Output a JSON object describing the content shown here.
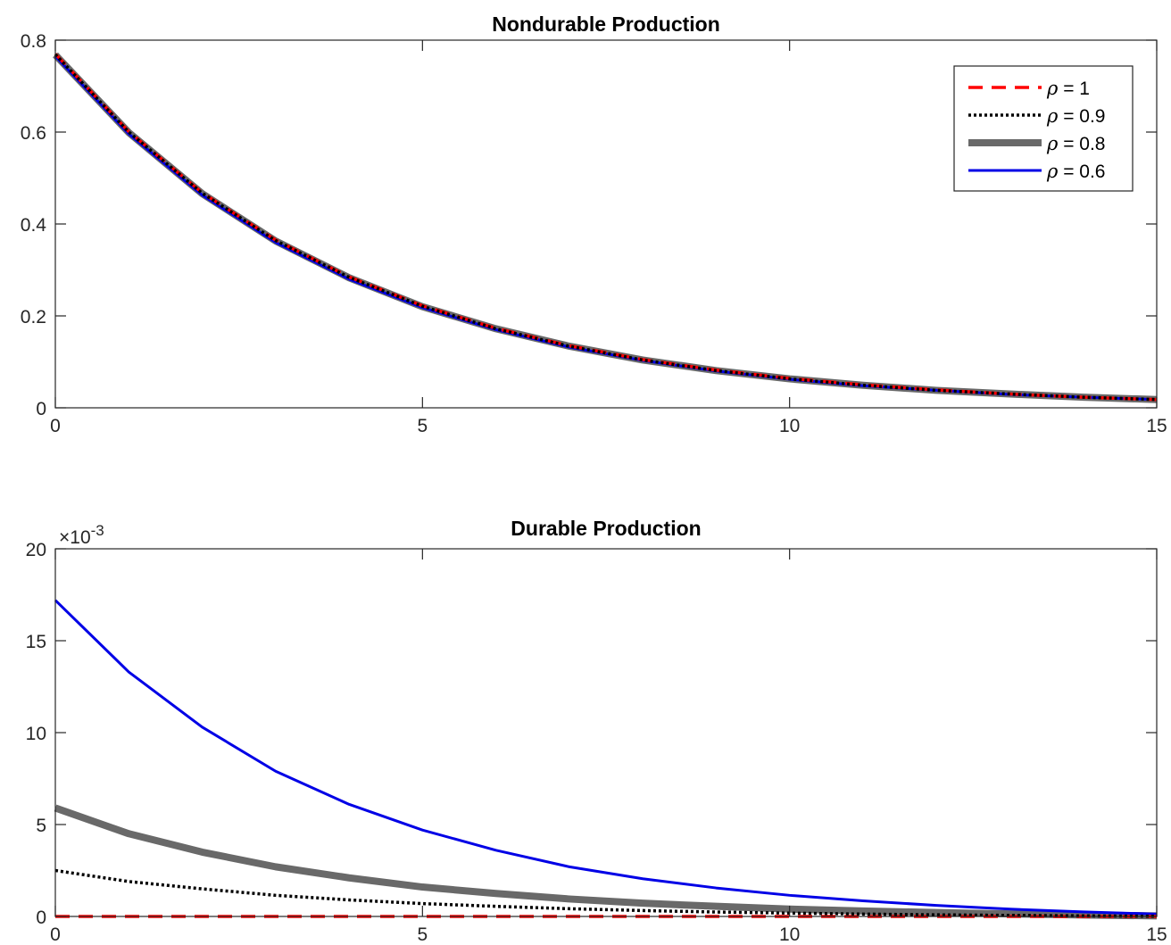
{
  "chart_data": [
    {
      "type": "line",
      "title": "Nondurable Production",
      "xlabel": "",
      "ylabel": "",
      "xlim": [
        0,
        15
      ],
      "ylim": [
        0,
        0.8
      ],
      "xticks": [
        "0",
        "5",
        "10",
        "15"
      ],
      "yticks": [
        "0",
        "0.2",
        "0.4",
        "0.6",
        "0.8"
      ],
      "grid": false,
      "legend_position": "top-right",
      "x": [
        0,
        1,
        2,
        3,
        4,
        5,
        6,
        7,
        8,
        9,
        10,
        11,
        12,
        13,
        14,
        15
      ],
      "series": [
        {
          "name": "= 1",
          "symbol": "ρ",
          "color": "#ff0000",
          "style": "dashed",
          "values": [
            0.77,
            0.601,
            0.468,
            0.365,
            0.285,
            0.222,
            0.173,
            0.135,
            0.105,
            0.082,
            0.064,
            0.05,
            0.039,
            0.03,
            0.023,
            0.018
          ]
        },
        {
          "name": "= 0.9",
          "symbol": "ρ",
          "color": "#000000",
          "style": "dotted",
          "values": [
            0.769,
            0.6,
            0.467,
            0.364,
            0.284,
            0.221,
            0.172,
            0.134,
            0.104,
            0.081,
            0.063,
            0.049,
            0.038,
            0.03,
            0.023,
            0.018
          ]
        },
        {
          "name": "= 0.8",
          "symbol": "ρ",
          "color": "#696969",
          "style": "thick",
          "values": [
            0.768,
            0.599,
            0.466,
            0.363,
            0.283,
            0.22,
            0.172,
            0.134,
            0.104,
            0.081,
            0.063,
            0.049,
            0.038,
            0.03,
            0.023,
            0.018
          ]
        },
        {
          "name": "= 0.6",
          "symbol": "ρ",
          "color": "#0000e6",
          "style": "solid",
          "values": [
            0.765,
            0.596,
            0.463,
            0.36,
            0.28,
            0.218,
            0.17,
            0.132,
            0.103,
            0.08,
            0.062,
            0.048,
            0.038,
            0.029,
            0.023,
            0.018
          ]
        }
      ]
    },
    {
      "type": "line",
      "title": "Durable Production",
      "xlabel": "",
      "ylabel": "",
      "xlim": [
        0,
        15
      ],
      "ylim": [
        0,
        0.02
      ],
      "xticks": [
        "0",
        "5",
        "10",
        "15"
      ],
      "yticks": [
        "0",
        "5",
        "10",
        "15",
        "20"
      ],
      "y_exponent_base": "×10",
      "y_exponent_power": "-3",
      "grid": false,
      "x": [
        0,
        1,
        2,
        3,
        4,
        5,
        6,
        7,
        8,
        9,
        10,
        11,
        12,
        13,
        14,
        15
      ],
      "series": [
        {
          "name": "= 1",
          "symbol": "ρ",
          "color": "#ff0000",
          "style": "dashed",
          "values": [
            0,
            0,
            0,
            0,
            0,
            0,
            0,
            0,
            0,
            0,
            0,
            0,
            0,
            0,
            0,
            0
          ]
        },
        {
          "name": "= 0.9",
          "symbol": "ρ",
          "color": "#000000",
          "style": "dotted",
          "values": [
            0.0025,
            0.0019,
            0.0015,
            0.00115,
            0.0009,
            0.0007,
            0.00055,
            0.00042,
            0.00032,
            0.00024,
            0.00018,
            0.00013,
            9e-05,
            6e-05,
            3e-05,
            1e-05
          ]
        },
        {
          "name": "= 0.8",
          "symbol": "ρ",
          "color": "#696969",
          "style": "thick",
          "values": [
            0.0059,
            0.0045,
            0.0035,
            0.0027,
            0.0021,
            0.0016,
            0.00125,
            0.00095,
            0.00072,
            0.00055,
            0.0004,
            0.0003,
            0.00021,
            0.00014,
            8e-05,
            3e-05
          ]
        },
        {
          "name": "= 0.6",
          "symbol": "ρ",
          "color": "#0000e6",
          "style": "solid",
          "values": [
            0.0172,
            0.0133,
            0.0103,
            0.0079,
            0.0061,
            0.0047,
            0.0036,
            0.0027,
            0.00205,
            0.00155,
            0.00115,
            0.00085,
            0.0006,
            0.0004,
            0.00025,
            0.00013
          ]
        }
      ]
    }
  ]
}
